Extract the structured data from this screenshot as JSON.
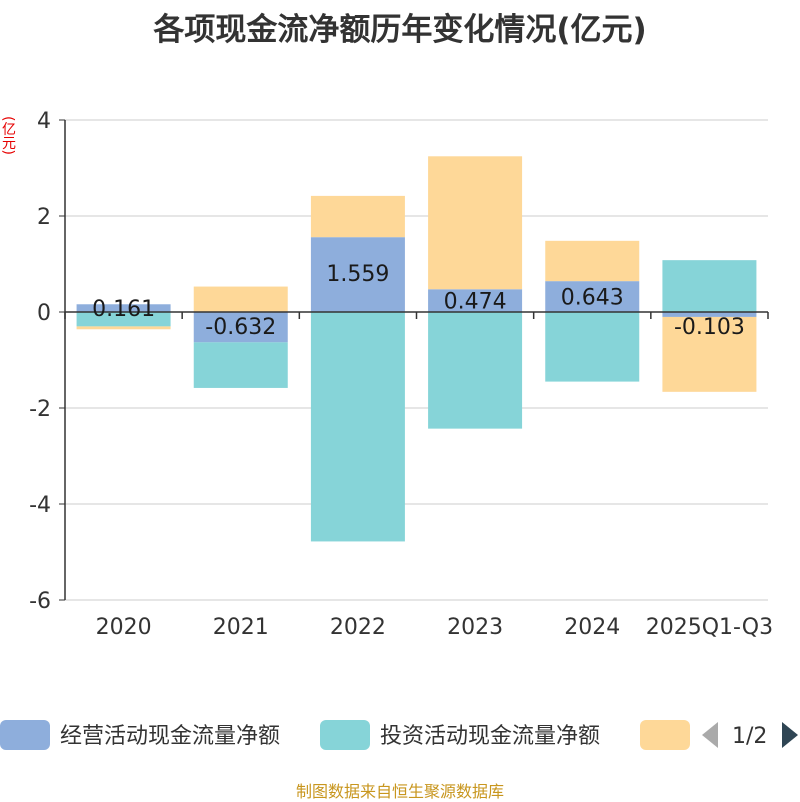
{
  "chart_data": {
    "type": "bar",
    "title": "各项现金流净额历年变化情况(亿元)",
    "ylabel": "(亿元)",
    "ylim": [
      -6,
      4
    ],
    "yticks": [
      4,
      2,
      0,
      -2,
      -4,
      -6
    ],
    "categories": [
      "2020",
      "2021",
      "2022",
      "2023",
      "2024",
      "2025Q1-Q3"
    ],
    "series": [
      {
        "name": "经营活动现金流量净额",
        "color": "#8eaedc",
        "values": [
          0.161,
          -0.632,
          1.559,
          0.474,
          0.643,
          -0.103
        ]
      },
      {
        "name": "投资活动现金流量净额",
        "color": "#86d4d8",
        "values": [
          -0.3,
          -0.95,
          -4.78,
          -2.43,
          -1.45,
          1.08
        ]
      },
      {
        "name": "",
        "color": "#fed898",
        "values": [
          -0.06,
          0.53,
          0.86,
          2.77,
          0.84,
          -1.56
        ]
      }
    ],
    "data_labels": [
      "0.161",
      "-0.632",
      "1.559",
      "0.474",
      "0.643",
      "-0.103"
    ],
    "legend": {
      "page": "1/2",
      "position": "bottom"
    },
    "source": "制图数据来自恒生聚源数据库"
  }
}
